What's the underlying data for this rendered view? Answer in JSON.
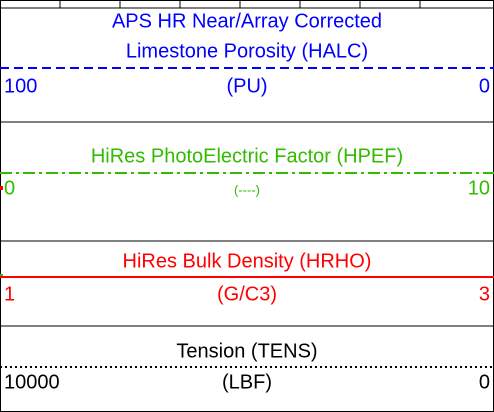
{
  "tracks": [
    {
      "title": [
        "APS HR Near/Array Corrected",
        "Limestone Porosity (HALC)"
      ],
      "unit": "(PU)",
      "left": 100,
      "right": 0,
      "color": "#0000ff",
      "line": "dashed"
    },
    {
      "title": [
        "HiRes PhotoElectric Factor (HPEF)"
      ],
      "unit": "(----)",
      "left": 0,
      "right": 10,
      "color": "#33bb00",
      "line": "dash-dot"
    },
    {
      "title": [
        "HiRes Bulk Density (HRHO)"
      ],
      "unit": "(G/C3)",
      "left": 1,
      "right": 3,
      "color": "#ff0000",
      "line": "solid"
    },
    {
      "title": [
        "Tension (TENS)"
      ],
      "unit": "(LBF)",
      "left": 10000,
      "right": 0,
      "color": "#000000",
      "line": "dotted"
    }
  ]
}
